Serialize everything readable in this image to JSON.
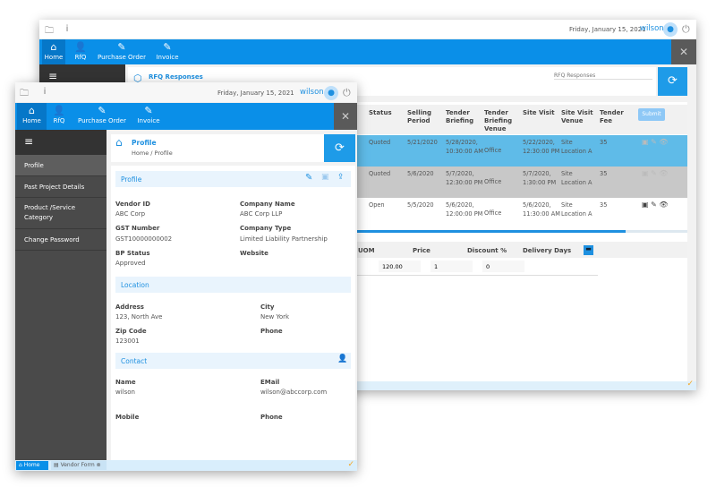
{
  "date": "Friday, January 15, 2021",
  "user": "wilson",
  "nav": [
    {
      "label": "Home",
      "icon": "home-icon"
    },
    {
      "label": "RfQ",
      "icon": "user-plus-icon"
    },
    {
      "label": "Purchase Order",
      "icon": "edit-icon"
    },
    {
      "label": "Invoice",
      "icon": "edit-icon"
    }
  ],
  "back": {
    "page_title": "RFQ Responses",
    "search_placeholder": "RFQ Responses",
    "columns": [
      "Status",
      "Selling Period",
      "Tender Briefing",
      "Tender Briefing Venue",
      "Site Visit",
      "Site Visit Venue",
      "Tender Fee"
    ],
    "submit_label": "Submit",
    "rows": [
      {
        "status": "Quoted",
        "selling": "5/21/2020",
        "briefing": "5/28/2020, 10:30:00 AM",
        "bvenue": "Office",
        "visit": "5/22/2020, 12:30:00 PM",
        "vvenue": "Site Location A",
        "fee": "35"
      },
      {
        "status": "Quoted",
        "selling": "5/6/2020",
        "briefing": "5/7/2020, 12:30:00 PM",
        "bvenue": "Office",
        "visit": "5/7/2020, 1:30:00 PM",
        "vvenue": "Site Location A",
        "fee": "35"
      },
      {
        "status": "Open",
        "selling": "5/5/2020",
        "briefing": "5/6/2020, 12:00:00 PM",
        "bvenue": "Office",
        "visit": "5/6/2020, 11:30:00 AM",
        "vvenue": "Site Location A",
        "fee": "35"
      }
    ],
    "item_columns": [
      "UOM",
      "Price",
      "Discount %",
      "Delivery Days"
    ],
    "item_row": {
      "price": "120.00",
      "qty": "1",
      "discount": "0"
    }
  },
  "front": {
    "sidebar": [
      "Profile",
      "Past Project Details",
      "Product /Service Category",
      "Change Password"
    ],
    "page_title": "Profile",
    "breadcrumb": "Home / Profile",
    "profile_section": "Profile",
    "fields": {
      "vendor_id": {
        "label": "Vendor ID",
        "value": "ABC Corp"
      },
      "company_name": {
        "label": "Company Name",
        "value": "ABC Corp LLP"
      },
      "gst": {
        "label": "GST Number",
        "value": "GST10000000002"
      },
      "company_type": {
        "label": "Company Type",
        "value": "Limited Liability Partnership"
      },
      "bp_status": {
        "label": "BP Status",
        "value": "Approved"
      },
      "website": {
        "label": "Website",
        "value": ""
      }
    },
    "location_section": "Location",
    "location": {
      "address": {
        "label": "Address",
        "value": "123, North Ave"
      },
      "city": {
        "label": "City",
        "value": "New York"
      },
      "zip": {
        "label": "Zip Code",
        "value": "123001"
      },
      "phone": {
        "label": "Phone",
        "value": ""
      }
    },
    "contact_section": "Contact",
    "contact": {
      "name": {
        "label": "Name",
        "value": "wilson"
      },
      "email": {
        "label": "EMail",
        "value": "wilson@abccorp.com"
      },
      "mobile": {
        "label": "Mobile",
        "value": ""
      },
      "phone": {
        "label": "Phone",
        "value": ""
      }
    },
    "tabs": [
      {
        "label": "Home"
      },
      {
        "label": "Vendor Form"
      }
    ]
  },
  "colors": {
    "primary": "#0a8fe8",
    "selected_row": "#5fbbe8",
    "sidebar": "#4a4a4a"
  }
}
